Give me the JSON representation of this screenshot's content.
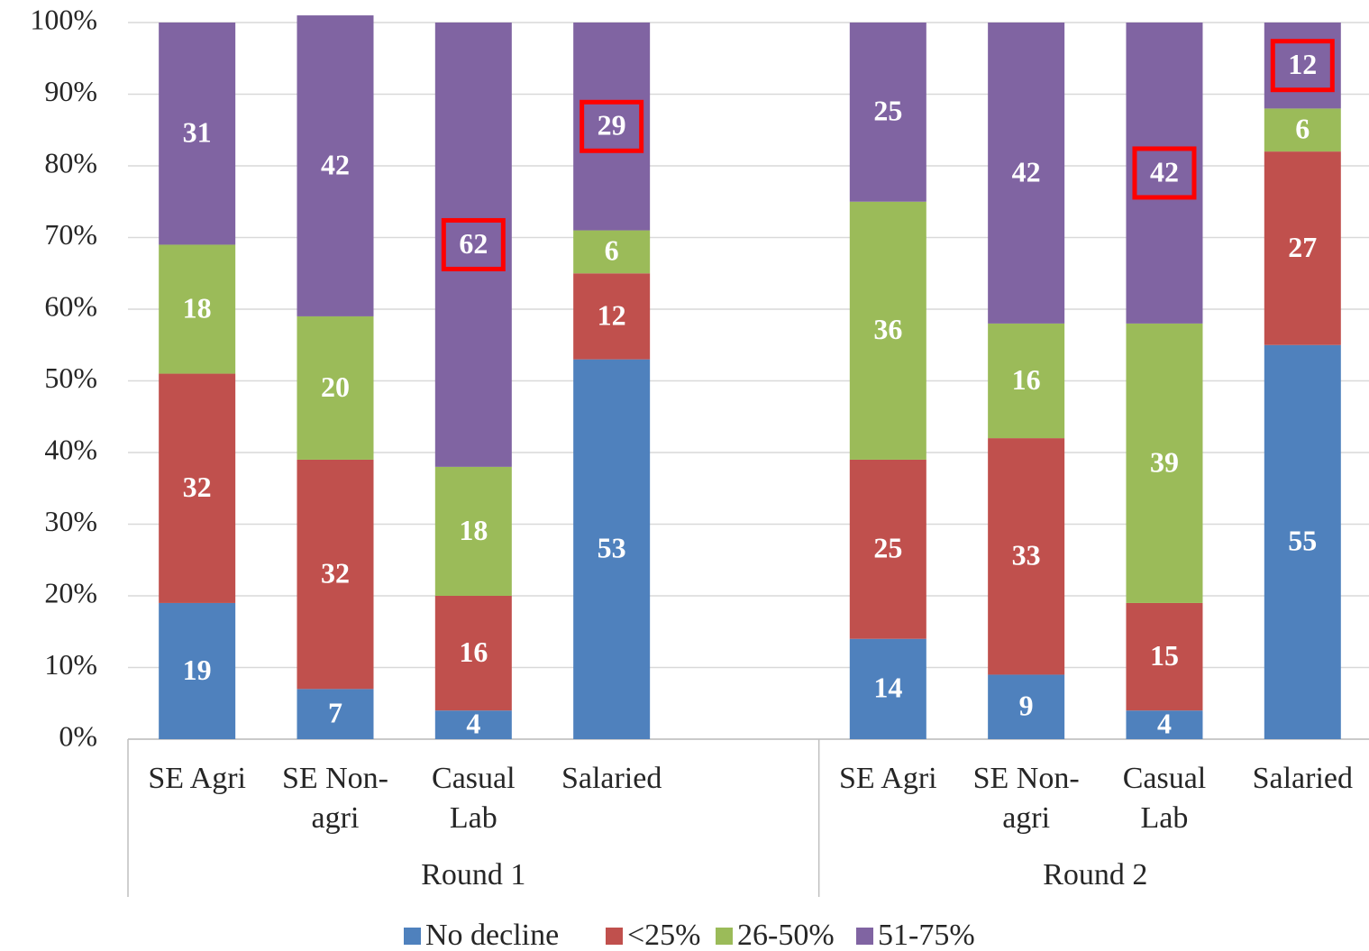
{
  "chart_data": {
    "type": "stacked_bar",
    "categories": [
      "SE Agri",
      "SE Non-agri",
      "Casual Lab",
      "Salaried",
      null,
      "SE Agri",
      "SE Non-agri",
      "Casual Lab",
      "Salaried"
    ],
    "groups": [
      {
        "label": "Round 1",
        "count": 5
      },
      {
        "label": "Round 2",
        "count": 4
      }
    ],
    "series": [
      {
        "name": "No decline",
        "color": "#4f81bd",
        "values": [
          19,
          7,
          4,
          53,
          null,
          14,
          9,
          4,
          55
        ]
      },
      {
        "name": "<25%",
        "color": "#c0504d",
        "values": [
          32,
          32,
          16,
          12,
          null,
          25,
          33,
          15,
          27
        ]
      },
      {
        "name": "26-50%",
        "color": "#9bbb59",
        "values": [
          18,
          20,
          18,
          6,
          null,
          36,
          16,
          39,
          6
        ]
      },
      {
        "name": "51-75%",
        "color": "#8064a2",
        "values": [
          31,
          42,
          62,
          29,
          null,
          25,
          42,
          42,
          12
        ],
        "highlight": [
          false,
          false,
          true,
          true,
          false,
          false,
          false,
          true,
          true
        ]
      }
    ],
    "ylim": [
      0,
      100
    ],
    "yticks": [
      {
        "value": 0,
        "label": "0%"
      },
      {
        "value": 10,
        "label": "10%"
      },
      {
        "value": 20,
        "label": "20%"
      },
      {
        "value": 30,
        "label": "30%"
      },
      {
        "value": 40,
        "label": "40%"
      },
      {
        "value": 50,
        "label": "50%"
      },
      {
        "value": 60,
        "label": "60%"
      },
      {
        "value": 70,
        "label": "70%"
      },
      {
        "value": 80,
        "label": "80%"
      },
      {
        "value": 90,
        "label": "90%"
      },
      {
        "value": 100,
        "label": "100%"
      }
    ],
    "grid": true,
    "legend": "bottom"
  }
}
